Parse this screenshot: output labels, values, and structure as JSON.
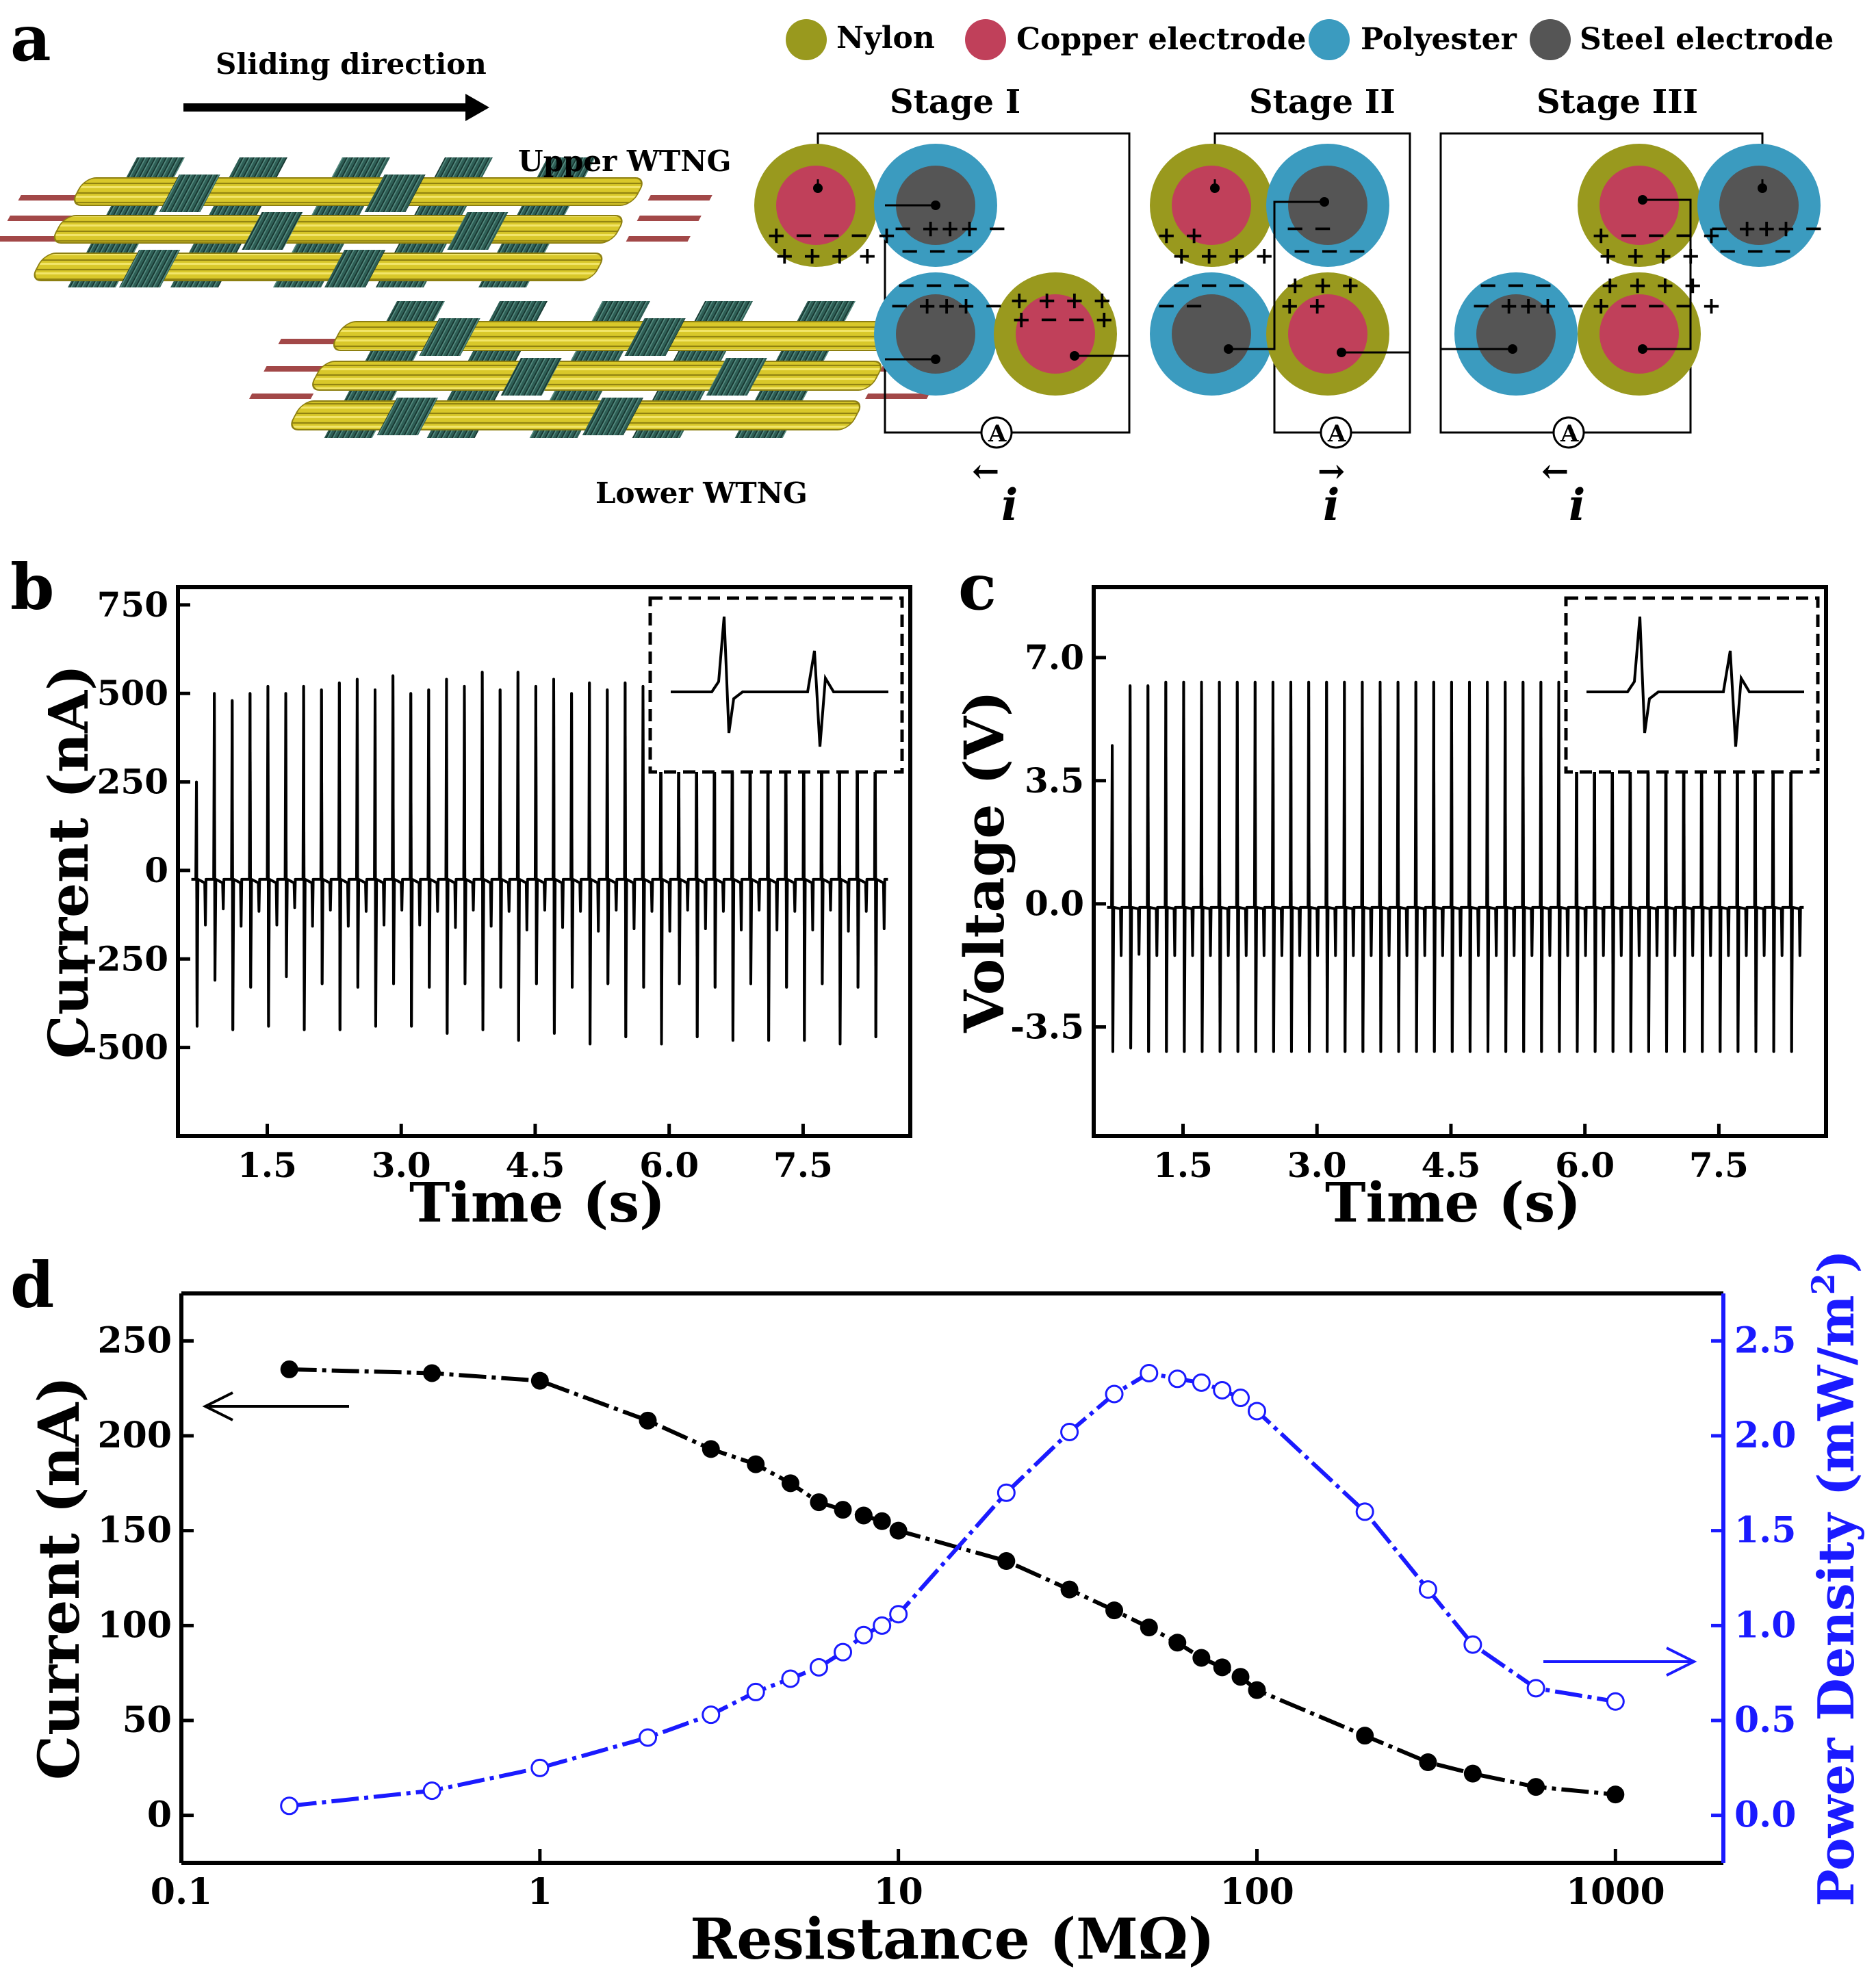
{
  "panel_a": {
    "letter": "a",
    "sliding_direction": "Sliding direction",
    "upper_label": "Upper WTNG",
    "lower_label": "Lower WTNG",
    "legend": [
      {
        "label": "Nylon",
        "color": "#99991e"
      },
      {
        "label": "Copper electrode",
        "color": "#c0405a"
      },
      {
        "label": "Polyester",
        "color": "#3b9bbf"
      },
      {
        "label": "Steel electrode",
        "color": "#555555"
      }
    ],
    "stages": [
      {
        "title": "Stage I",
        "current_label": "i",
        "current_arrow": "←",
        "ammeter": "A"
      },
      {
        "title": "Stage II",
        "current_label": "i",
        "current_arrow": "→",
        "ammeter": "A"
      },
      {
        "title": "Stage III",
        "current_label": "i",
        "current_arrow": "←",
        "ammeter": "A"
      }
    ],
    "colors": {
      "nylon": "#99991e",
      "copper": "#c0405a",
      "polyester": "#3b9bbf",
      "steel": "#555555",
      "fabric_yellow": "#d9c82a",
      "fabric_green": "#2e5e55"
    }
  },
  "chart_data": [
    {
      "panel": "b",
      "type": "line",
      "title": "",
      "xlabel": "Time (s)",
      "ylabel": "Current (nA)",
      "xlim": [
        0.5,
        8.7
      ],
      "ylim": [
        -750,
        800
      ],
      "xticks": [
        "1.5",
        "3.0",
        "4.5",
        "6.0",
        "7.5"
      ],
      "yticks": [
        "750",
        "500",
        "250",
        "0",
        "-250",
        "-500"
      ],
      "series": [
        {
          "name": "Current",
          "pulse_start_s": 0.7,
          "pulse_period_s": 0.2,
          "pulse_count": 39,
          "baseline": -25,
          "positive_peaks": [
            250,
            500,
            480,
            500,
            520,
            500,
            520,
            510,
            530,
            540,
            510,
            550,
            500,
            510,
            540,
            520,
            560,
            510,
            560,
            520,
            540,
            500,
            530,
            510,
            530,
            520,
            540,
            510,
            500,
            530,
            520,
            510,
            530,
            500,
            510,
            530,
            520,
            500,
            480
          ],
          "negative_peaks": [
            -440,
            -310,
            -450,
            -330,
            -440,
            -300,
            -450,
            -320,
            -450,
            -330,
            -440,
            -320,
            -440,
            -330,
            -460,
            -320,
            -450,
            -330,
            -480,
            -320,
            -460,
            -330,
            -490,
            -320,
            -470,
            -330,
            -490,
            -320,
            -470,
            -330,
            -480,
            -320,
            -480,
            -330,
            -480,
            -320,
            -490,
            -330,
            -470
          ]
        }
      ],
      "inset": "pulse detail (dashed box)"
    },
    {
      "panel": "c",
      "type": "line",
      "title": "",
      "xlabel": "Time (s)",
      "ylabel": "Voltage (V)",
      "xlim": [
        0.5,
        8.7
      ],
      "ylim": [
        -6.6,
        9.0
      ],
      "xticks": [
        "1.5",
        "3.0",
        "4.5",
        "6.0",
        "7.5"
      ],
      "yticks": [
        "7.0",
        "3.5",
        "0.0",
        "-3.5"
      ],
      "series": [
        {
          "name": "Voltage",
          "pulse_start_s": 0.7,
          "pulse_period_s": 0.2,
          "pulse_count": 39,
          "baseline": -0.1,
          "positive_peaks": [
            4.5,
            6.2,
            6.2,
            6.3,
            6.3,
            6.3,
            6.3,
            6.3,
            6.3,
            6.3,
            6.3,
            6.3,
            6.3,
            6.3,
            6.3,
            6.3,
            6.3,
            6.3,
            6.3,
            6.3,
            6.3,
            6.3,
            6.3,
            6.3,
            6.3,
            6.3,
            6.3,
            6.3,
            6.3,
            6.3,
            6.3,
            6.3,
            6.3,
            6.3,
            6.3,
            6.3,
            6.3,
            6.3,
            6.3
          ],
          "negative_peaks": [
            -4.2,
            -4.1,
            -4.2,
            -4.2,
            -4.2,
            -4.2,
            -4.2,
            -4.2,
            -4.2,
            -4.2,
            -4.2,
            -4.2,
            -4.2,
            -4.2,
            -4.2,
            -4.2,
            -4.2,
            -4.2,
            -4.2,
            -4.2,
            -4.2,
            -4.2,
            -4.2,
            -4.2,
            -4.2,
            -4.2,
            -4.2,
            -4.2,
            -4.2,
            -4.2,
            -4.2,
            -4.2,
            -4.2,
            -4.2,
            -4.2,
            -4.2,
            -4.2,
            -4.2,
            -4.2
          ]
        }
      ],
      "inset": "pulse detail (dashed box)"
    },
    {
      "panel": "d",
      "type": "line",
      "title": "",
      "xlabel": "Resistance (MΩ)",
      "xscale": "log",
      "xlim": [
        0.1,
        2000
      ],
      "xticks": [
        "0.1",
        "1",
        "10",
        "100",
        "1000"
      ],
      "ylabel": "Current (nA)",
      "ylim": [
        -25,
        275
      ],
      "yticks": [
        "250",
        "200",
        "150",
        "100",
        "50",
        "0"
      ],
      "y2label": "Power Density (mW/m",
      "y2label_sup": "2",
      "y2label_end": ")",
      "y2lim": [
        -0.25,
        2.75
      ],
      "y2ticks": [
        "2.5",
        "2.0",
        "1.5",
        "1.0",
        "0.5",
        "0.0"
      ],
      "series": [
        {
          "name": "Current",
          "axis": "left",
          "color": "#000000",
          "marker": "filled-circle",
          "x": [
            0.2,
            0.5,
            1,
            2,
            3,
            4,
            5,
            6,
            7,
            8,
            9,
            10,
            20,
            30,
            40,
            50,
            60,
            70,
            80,
            90,
            100,
            200,
            300,
            400,
            600,
            1000
          ],
          "y": [
            235,
            233,
            229,
            208,
            193,
            185,
            175,
            165,
            161,
            158,
            155,
            150,
            134,
            119,
            108,
            99,
            91,
            83,
            78,
            73,
            66,
            42,
            28,
            22,
            15,
            11
          ]
        },
        {
          "name": "Power Density",
          "axis": "right",
          "color": "#1a1aff",
          "marker": "open-circle",
          "x": [
            0.2,
            0.5,
            1,
            2,
            3,
            4,
            5,
            6,
            7,
            8,
            9,
            10,
            20,
            30,
            40,
            50,
            60,
            70,
            80,
            90,
            100,
            200,
            300,
            400,
            600,
            1000
          ],
          "y": [
            0.05,
            0.13,
            0.25,
            0.41,
            0.53,
            0.65,
            0.72,
            0.78,
            0.86,
            0.95,
            1.0,
            1.06,
            1.7,
            2.02,
            2.22,
            2.33,
            2.3,
            2.28,
            2.24,
            2.2,
            2.13,
            1.6,
            1.19,
            0.9,
            0.67,
            0.6
          ]
        }
      ]
    }
  ],
  "panel_labels": {
    "b": "b",
    "c": "c",
    "d": "d"
  }
}
